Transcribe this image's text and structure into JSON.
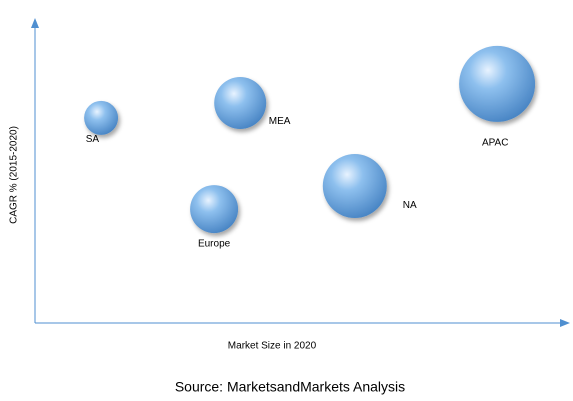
{
  "chart_data": {
    "type": "bubble",
    "x_label": "Market Size in 2020",
    "y_label": "CAGR % (2015-2020)",
    "source": "Source: MarketsandMarkets Analysis",
    "categories": [
      "SA",
      "MEA",
      "Europe",
      "NA",
      "APAC"
    ],
    "x": [
      12.4,
      38.5,
      33.6,
      60,
      86.7
    ],
    "values": [
      67.7,
      72.6,
      37.6,
      45.2,
      78.9
    ],
    "sizes": [
      17,
      26,
      24,
      32,
      38
    ],
    "color": "#4a86c5",
    "xlim": [
      0,
      100
    ],
    "ylim": [
      0,
      100
    ]
  }
}
